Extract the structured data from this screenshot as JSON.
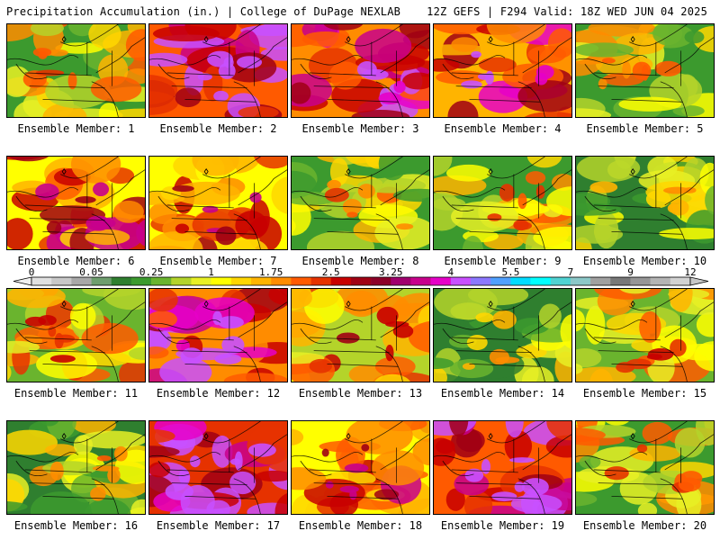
{
  "header": {
    "left_title": "Precipitation Accumulation (in.) | College of DuPage NEXLAB",
    "right_title": "12Z GEFS | F294 Valid: 18Z WED JUN 04 2025"
  },
  "member_prefix": "Ensemble Member: ",
  "members": [
    {
      "number": "1",
      "intensity": 0.35
    },
    {
      "number": "2",
      "intensity": 0.85
    },
    {
      "number": "3",
      "intensity": 0.75
    },
    {
      "number": "4",
      "intensity": 0.7
    },
    {
      "number": "5",
      "intensity": 0.3
    },
    {
      "number": "6",
      "intensity": 0.6
    },
    {
      "number": "7",
      "intensity": 0.55
    },
    {
      "number": "8",
      "intensity": 0.3
    },
    {
      "number": "9",
      "intensity": 0.35
    },
    {
      "number": "10",
      "intensity": 0.2
    },
    {
      "number": "11",
      "intensity": 0.4
    },
    {
      "number": "12",
      "intensity": 0.75
    },
    {
      "number": "13",
      "intensity": 0.45
    },
    {
      "number": "14",
      "intensity": 0.2
    },
    {
      "number": "15",
      "intensity": 0.4
    },
    {
      "number": "16",
      "intensity": 0.25
    },
    {
      "number": "17",
      "intensity": 0.9
    },
    {
      "number": "18",
      "intensity": 0.6
    },
    {
      "number": "19",
      "intensity": 0.85
    },
    {
      "number": "20",
      "intensity": 0.35
    }
  ],
  "colorbar": {
    "tick_labels": [
      "0",
      "0.05",
      "0.25",
      "1",
      "1.75",
      "2.5",
      "3.25",
      "4",
      "5.5",
      "7",
      "9",
      "12"
    ],
    "colors": [
      "#e0e0e0",
      "#c8c8c8",
      "#a8a8a8",
      "#6e9e6e",
      "#2f7f2f",
      "#3c9a2e",
      "#6ab42e",
      "#b4d42a",
      "#e8f024",
      "#ffff00",
      "#ffd700",
      "#ffb400",
      "#ff8c00",
      "#ff5a00",
      "#e63200",
      "#c80000",
      "#a00014",
      "#8c0028",
      "#a0006e",
      "#c8008c",
      "#e600c8",
      "#c850ff",
      "#8c78ff",
      "#50a0ff",
      "#00dcff",
      "#00ffff",
      "#50d2d2",
      "#8cc8c8",
      "#a0a0a0",
      "#787878",
      "#969696",
      "#b4b4b4",
      "#d2d2d2"
    ]
  }
}
